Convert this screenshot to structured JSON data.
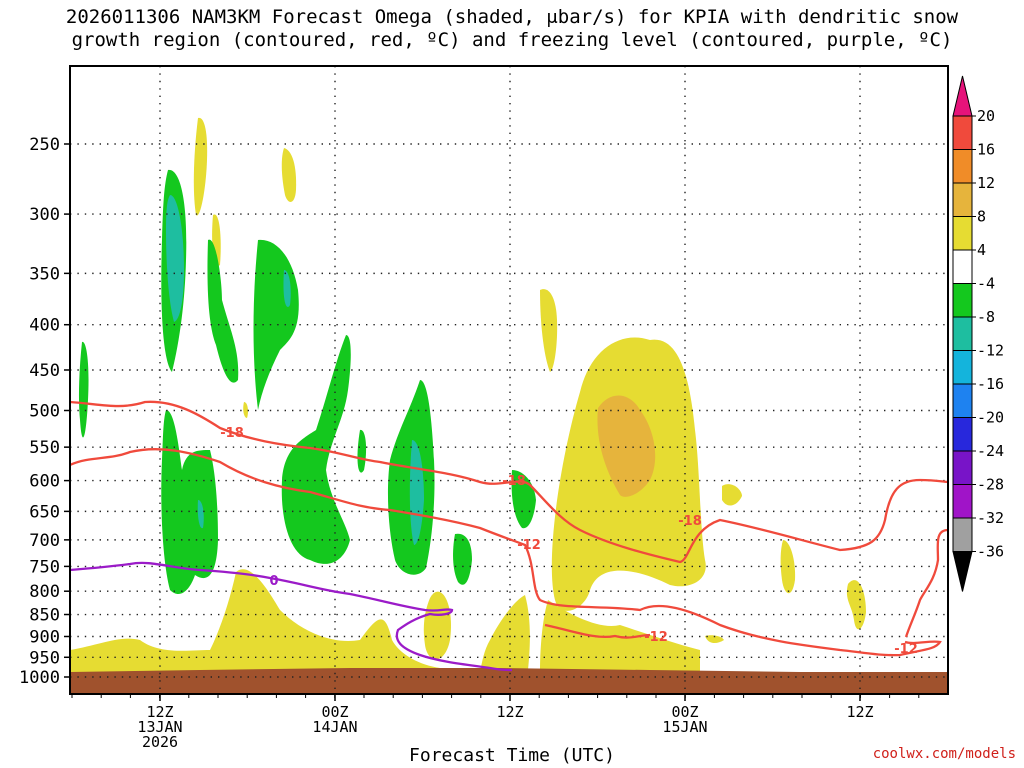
{
  "title_line1": "2026011306 NAM3KM Forecast Omega (shaded, μbar/s) for KPIA with dendritic snow",
  "title_line2": "growth region (contoured, red, ºC) and freezing level (contoured, purple, ºC)",
  "credit": "coolwx.com/models",
  "chart_data": {
    "type": "contour",
    "title": "2026011306 NAM3KM Forecast Omega (shaded, μbar/s) for KPIA with dendritic snow growth region (contoured, red, ºC) and freezing level (contoured, purple, ºC)",
    "xlabel": "Forecast Time (UTC)",
    "ylabel": "",
    "y_axis": {
      "scale": "log-pressure",
      "reversed": true,
      "ticks": [
        250,
        300,
        350,
        400,
        450,
        500,
        550,
        600,
        650,
        700,
        750,
        800,
        850,
        900,
        950,
        1000
      ]
    },
    "x_axis": {
      "ticks": [
        {
          "line1": "12Z",
          "line2": "13JAN",
          "line3": "2026"
        },
        {
          "line1": "00Z",
          "line2": "14JAN",
          "line3": ""
        },
        {
          "line1": "12Z",
          "line2": "",
          "line3": ""
        },
        {
          "line1": "00Z",
          "line2": "15JAN",
          "line3": ""
        },
        {
          "line1": "12Z",
          "line2": "",
          "line3": ""
        }
      ]
    },
    "colorbar": {
      "levels": [
        "20",
        "16",
        "12",
        "8",
        "4",
        "-4",
        "-8",
        "-12",
        "-16",
        "-20",
        "-24",
        "-28",
        "-32",
        "-36"
      ],
      "colors": [
        "#e6137a",
        "#f04a3c",
        "#f08c28",
        "#e6b43c",
        "#e6dc32",
        "#ffffff",
        "#14c81e",
        "#1ebea0",
        "#14b4dc",
        "#1e82f0",
        "#2828dc",
        "#7814c8",
        "#a014c8",
        "#a0a0a0",
        "#000000"
      ]
    },
    "contour_labels": [
      {
        "label": "-18",
        "color": "#f04a3c"
      },
      {
        "label": "-18",
        "color": "#f04a3c"
      },
      {
        "label": "-18",
        "color": "#f04a3c"
      },
      {
        "label": "-12",
        "color": "#f04a3c"
      },
      {
        "label": "-12",
        "color": "#f04a3c"
      },
      {
        "label": "-12",
        "color": "#f04a3c"
      },
      {
        "label": "0",
        "color": "#9b1bc8"
      }
    ],
    "grid": true,
    "terrain_color": "#a0522d"
  }
}
